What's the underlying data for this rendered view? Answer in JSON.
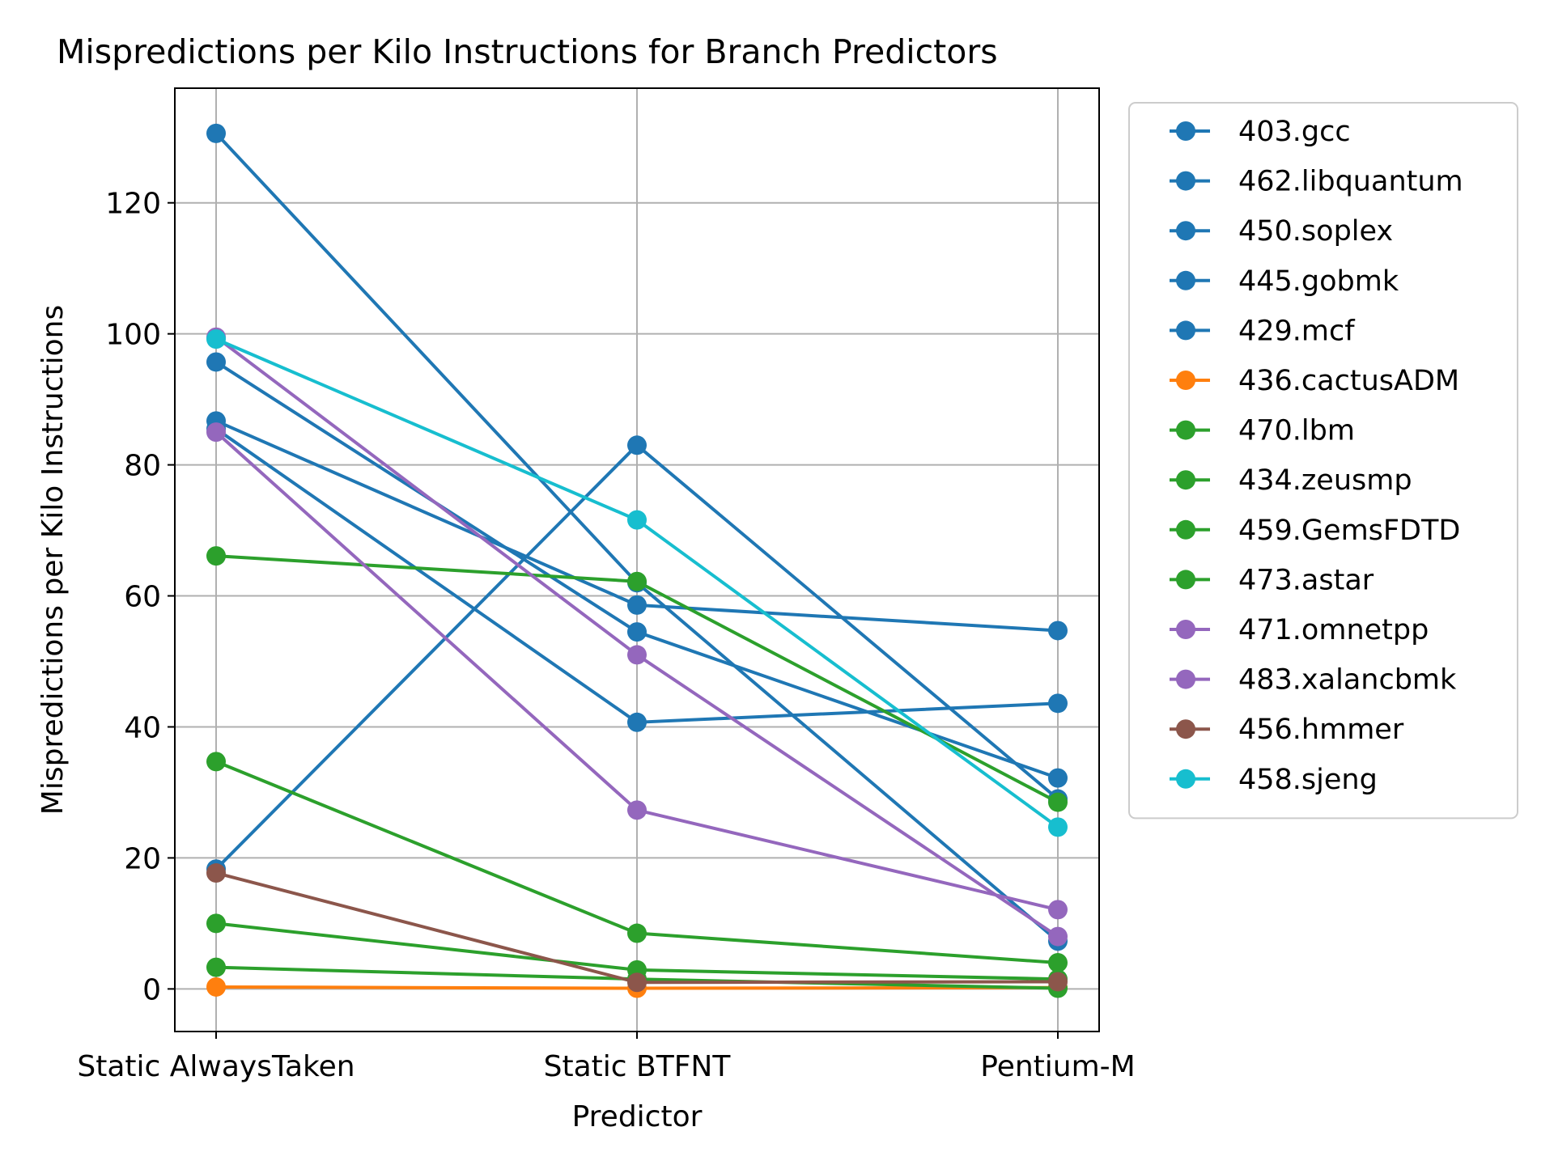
{
  "chart_data": {
    "type": "line",
    "title": "Mispredictions per Kilo Instructions for Branch Predictors",
    "xlabel": "Predictor",
    "ylabel": "Mispredictions per Kilo Instructions",
    "categories": [
      "Static AlwaysTaken",
      "Static BTFNT",
      "Pentium-M"
    ],
    "ylim": [
      -6.5,
      137.5
    ],
    "yticks": [
      0,
      20,
      40,
      60,
      80,
      100,
      120
    ],
    "grid": true,
    "legend_position": "outside-right-top",
    "series": [
      {
        "name": "403.gcc",
        "color": "#1f77b4",
        "values": [
          95.7,
          54.5,
          32.2
        ]
      },
      {
        "name": "462.libquantum",
        "color": "#1f77b4",
        "values": [
          18.3,
          83.0,
          29.0
        ]
      },
      {
        "name": "450.soplex",
        "color": "#1f77b4",
        "values": [
          86.7,
          58.6,
          54.7
        ]
      },
      {
        "name": "445.gobmk",
        "color": "#1f77b4",
        "values": [
          85.5,
          40.7,
          43.6
        ]
      },
      {
        "name": "429.mcf",
        "color": "#1f77b4",
        "values": [
          130.6,
          62.0,
          7.3
        ]
      },
      {
        "name": "436.cactusADM",
        "color": "#ff7f0e",
        "values": [
          0.3,
          0.1,
          0.2
        ]
      },
      {
        "name": "470.lbm",
        "color": "#2ca02c",
        "values": [
          66.1,
          62.2,
          28.5
        ]
      },
      {
        "name": "434.zeusmp",
        "color": "#2ca02c",
        "values": [
          34.7,
          8.5,
          4.0
        ]
      },
      {
        "name": "459.GemsFDTD",
        "color": "#2ca02c",
        "values": [
          10.0,
          2.9,
          1.5
        ]
      },
      {
        "name": "473.astar",
        "color": "#2ca02c",
        "values": [
          3.3,
          1.5,
          0.1
        ]
      },
      {
        "name": "471.omnetpp",
        "color": "#9467bd",
        "values": [
          85.0,
          27.3,
          12.1
        ]
      },
      {
        "name": "483.xalancbmk",
        "color": "#9467bd",
        "values": [
          99.5,
          51.0,
          8.0
        ]
      },
      {
        "name": "456.hmmer",
        "color": "#8c564b",
        "values": [
          17.7,
          1.0,
          1.1
        ]
      },
      {
        "name": "458.sjeng",
        "color": "#17becf",
        "values": [
          99.2,
          71.6,
          24.7
        ]
      }
    ]
  }
}
